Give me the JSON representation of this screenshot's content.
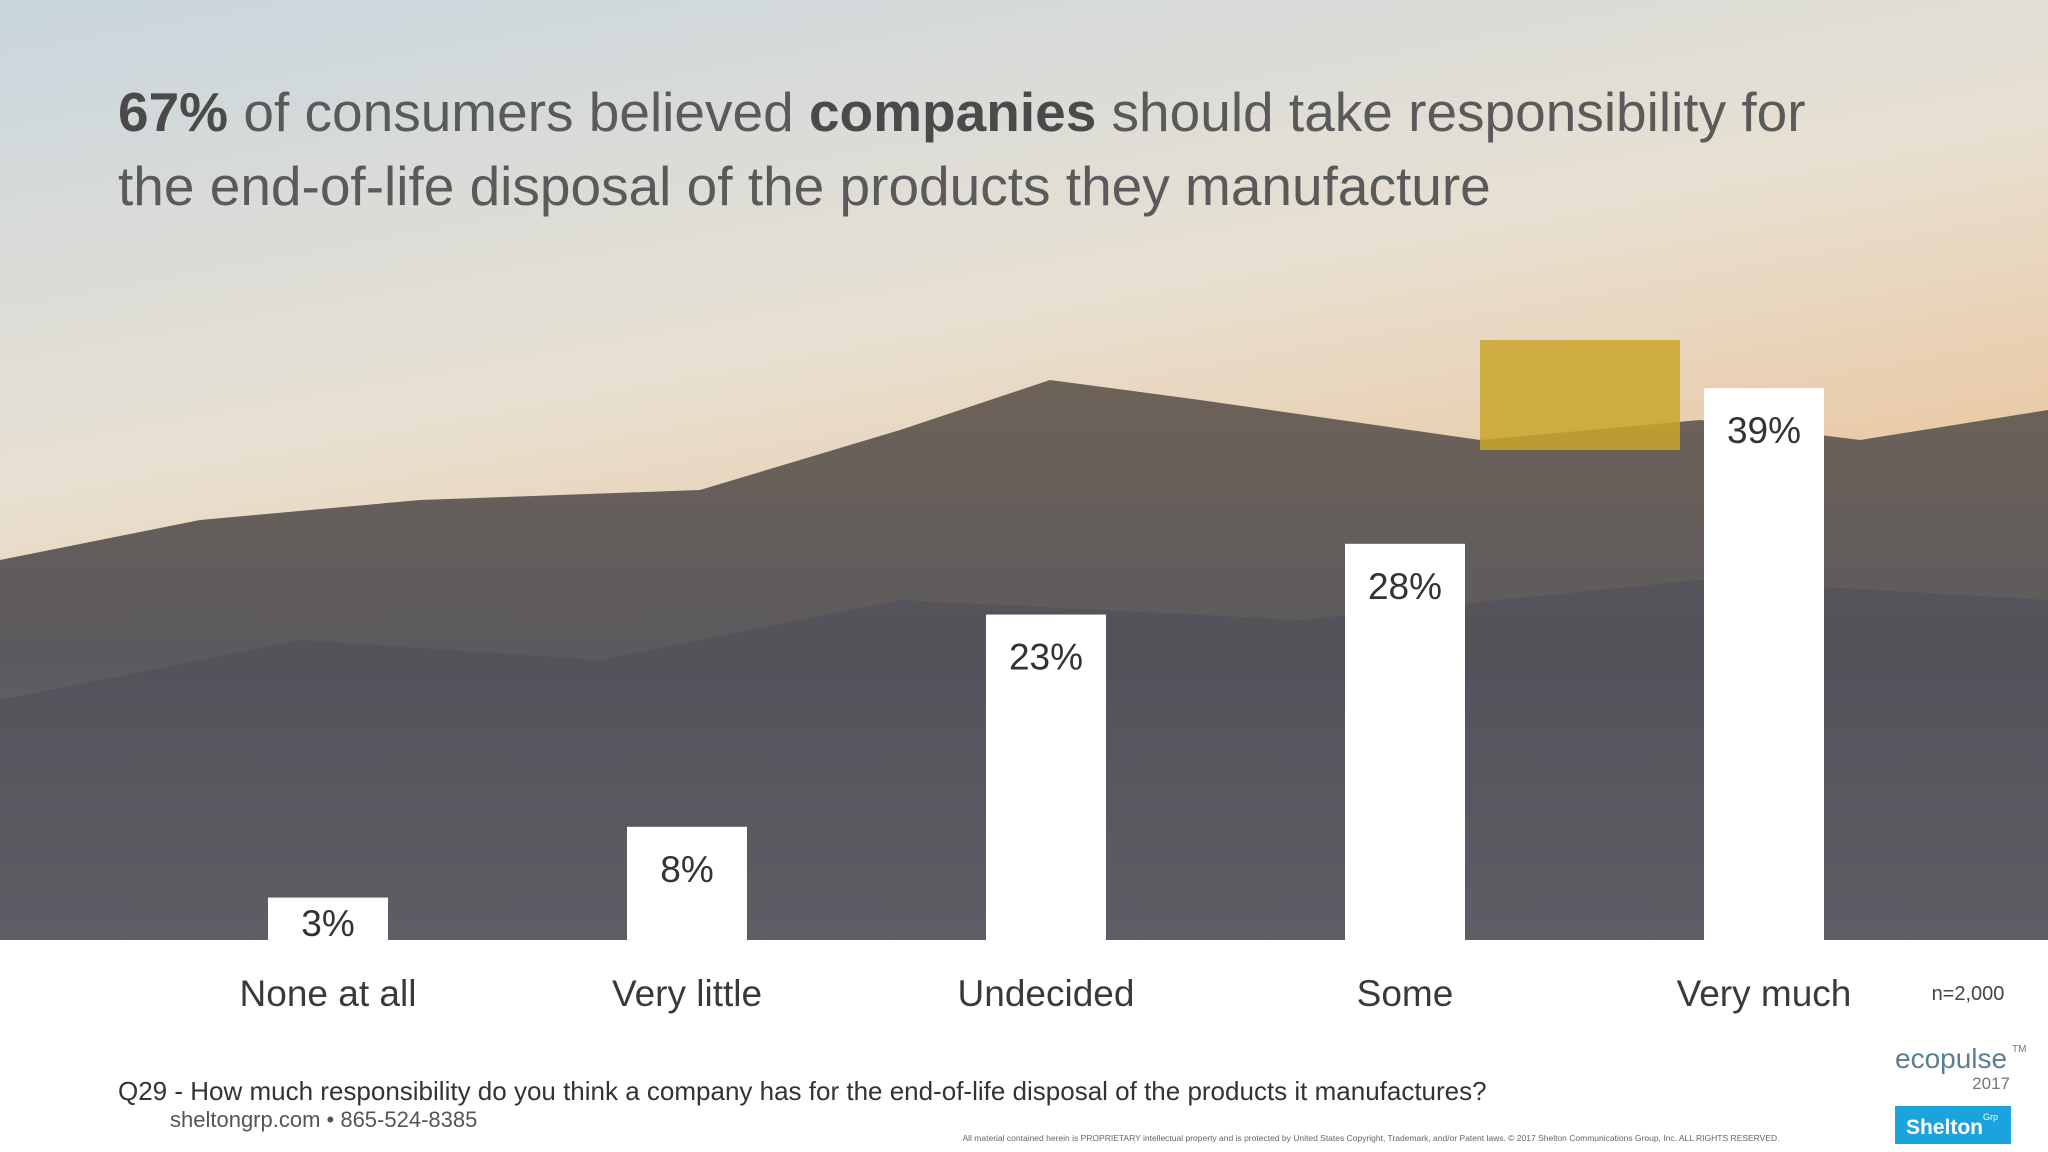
{
  "chart_data": {
    "type": "bar",
    "title_lines": [
      [
        {
          "text": "67%",
          "bold": true
        },
        {
          "text": " of consumers believed ",
          "bold": false
        },
        {
          "text": "companies",
          "bold": true
        },
        {
          "text": " should take responsibility for",
          "bold": false
        }
      ],
      [
        {
          "text": "the end-of-life disposal of the products they manufacture",
          "bold": false
        }
      ]
    ],
    "categories": [
      "None at all",
      "Very little",
      "Undecided",
      "Some",
      "Very much"
    ],
    "values": [
      3,
      8,
      23,
      28,
      39
    ],
    "value_labels": [
      "3%",
      "8%",
      "23%",
      "28%",
      "39%"
    ],
    "color": "#ffffff",
    "sample_note": "n=2,000",
    "question": "Q29 - How much responsibility do you think a company has for the end-of-life disposal of the products it manufactures?"
  },
  "footer": {
    "contact": "sheltongrp.com • 865-524-8385",
    "copyright": "All material contained herein is PROPRIETARY intellectual property and is protected by United States Copyright, Trademark, and/or Patent laws. © 2017 Shelton Communications Group, Inc. ALL RIGHTS RESERVED.",
    "brand": "ecopulse",
    "brand_mark": "TM",
    "brand_year": "2017",
    "logo": "Shelton",
    "logo_mark": "Grp"
  }
}
